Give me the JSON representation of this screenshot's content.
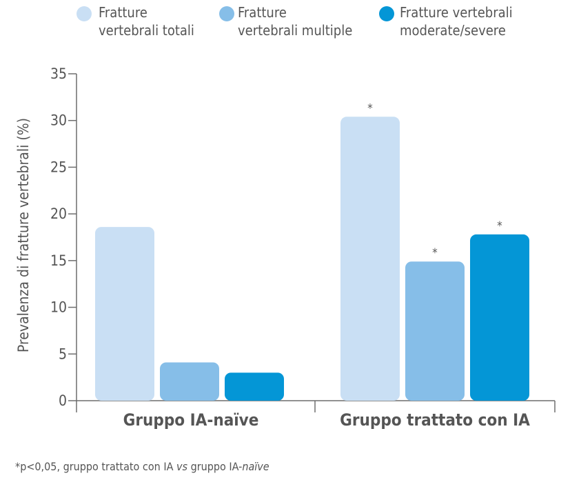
{
  "chart_data": {
    "type": "bar",
    "categories": [
      "Gruppo IA-naïve",
      "Gruppo trattato con IA"
    ],
    "series": [
      {
        "name": "Fratture vertebrali totali",
        "legend_lines": [
          "Fratture",
          "vertebrali totali"
        ],
        "color": "#c9dff4",
        "values": [
          18.6,
          30.4
        ],
        "annotations": [
          "",
          "*"
        ]
      },
      {
        "name": "Fratture vertebrali multiple",
        "legend_lines": [
          "Fratture",
          "vertebrali multiple"
        ],
        "color": "#86bee8",
        "values": [
          4.1,
          14.9
        ],
        "annotations": [
          "",
          "*"
        ]
      },
      {
        "name": "Fratture vertebrali moderate/severe",
        "legend_lines": [
          "Fratture vertebrali",
          "moderate/severe"
        ],
        "color": "#0496d6",
        "values": [
          3.0,
          17.8
        ],
        "annotations": [
          "",
          "*"
        ]
      }
    ],
    "ylabel": "Prevalenza di fratture vertebrali (%)",
    "xlabel": "",
    "ylim": [
      0,
      35
    ],
    "yticks": [
      0,
      5,
      10,
      15,
      20,
      25,
      30,
      35
    ],
    "grid": false,
    "legend_position": "top",
    "footnote": {
      "prefix": "*p<0,05, gruppo trattato con IA ",
      "italic1": "vs",
      "middle": " gruppo IA-",
      "italic2": "naïve"
    }
  }
}
